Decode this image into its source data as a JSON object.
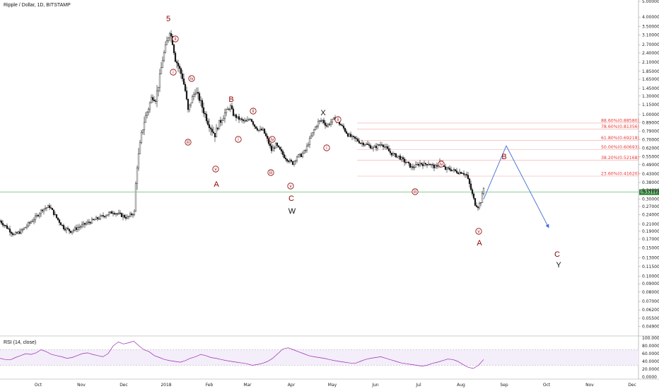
{
  "title": "Ripple / Dollar, 1D, BITSTAMP",
  "rsi_title": "RSI (14, close)",
  "current_price": "0.33117",
  "colors": {
    "candle": "#111111",
    "fib_line": "#f4a6a6",
    "fib_text": "#e53935",
    "price_line": "#4caf50",
    "price_tag": "#2e7d32",
    "wave_red": "#8b0000",
    "projection": "#3f6fd1",
    "rsi_line": "#9c27b0"
  },
  "chart_data": {
    "type": "candlestick",
    "y_scale": "log",
    "ylim": [
      0.045,
      5.0
    ],
    "y_ticks": [
      "5.00000",
      "4.00000",
      "3.50000",
      "3.10000",
      "2.70000",
      "2.40000",
      "2.10000",
      "1.85000",
      "1.65000",
      "1.45000",
      "1.30000",
      "1.15000",
      "1.00000",
      "0.89000",
      "0.79000",
      "0.70000",
      "0.62000",
      "0.55000",
      "0.49000",
      "0.43000",
      "0.38000",
      "0.34000",
      "0.30000",
      "0.27000",
      "0.24000",
      "0.21000",
      "0.19000",
      "0.17000",
      "0.15000",
      "0.13000",
      "0.11500",
      "0.10000",
      "0.09000",
      "0.08000",
      "0.07000",
      "0.06200",
      "0.05500",
      "0.04900"
    ],
    "x_labels": [
      "Oct",
      "Nov",
      "Dec",
      "2018",
      "Feb",
      "Mar",
      "Apr",
      "May",
      "Jun",
      "Jul",
      "Aug",
      "Sep",
      "Oct",
      "Nov",
      "Dec"
    ],
    "price_path": [
      [
        0,
        0.22
      ],
      [
        10,
        0.2
      ],
      [
        20,
        0.18
      ],
      [
        30,
        0.19
      ],
      [
        40,
        0.21
      ],
      [
        50,
        0.23
      ],
      [
        60,
        0.26
      ],
      [
        70,
        0.27
      ],
      [
        80,
        0.23
      ],
      [
        90,
        0.2
      ],
      [
        100,
        0.19
      ],
      [
        110,
        0.2
      ],
      [
        120,
        0.21
      ],
      [
        130,
        0.22
      ],
      [
        140,
        0.23
      ],
      [
        150,
        0.24
      ],
      [
        160,
        0.25
      ],
      [
        170,
        0.24
      ],
      [
        180,
        0.23
      ],
      [
        190,
        0.25
      ],
      [
        193,
        0.45
      ],
      [
        200,
        0.75
      ],
      [
        205,
        0.95
      ],
      [
        210,
        1.1
      ],
      [
        215,
        1.3
      ],
      [
        220,
        1.25
      ],
      [
        225,
        1.6
      ],
      [
        230,
        2.2
      ],
      [
        235,
        2.7
      ],
      [
        240,
        3.3
      ],
      [
        244,
        2.8
      ],
      [
        248,
        2.2
      ],
      [
        252,
        2.0
      ],
      [
        258,
        1.7
      ],
      [
        262,
        1.4
      ],
      [
        266,
        1.05
      ],
      [
        270,
        1.2
      ],
      [
        276,
        1.4
      ],
      [
        282,
        1.25
      ],
      [
        288,
        1.05
      ],
      [
        294,
        0.9
      ],
      [
        300,
        0.8
      ],
      [
        304,
        0.75
      ],
      [
        308,
        0.85
      ],
      [
        314,
        0.95
      ],
      [
        320,
        1.05
      ],
      [
        326,
        1.12
      ],
      [
        330,
        1.0
      ],
      [
        336,
        0.95
      ],
      [
        342,
        0.92
      ],
      [
        348,
        0.9
      ],
      [
        354,
        0.95
      ],
      [
        360,
        0.85
      ],
      [
        366,
        0.8
      ],
      [
        372,
        0.8
      ],
      [
        378,
        0.7
      ],
      [
        384,
        0.6
      ],
      [
        390,
        0.65
      ],
      [
        396,
        0.6
      ],
      [
        402,
        0.55
      ],
      [
        408,
        0.52
      ],
      [
        414,
        0.5
      ],
      [
        420,
        0.55
      ],
      [
        426,
        0.56
      ],
      [
        432,
        0.6
      ],
      [
        438,
        0.7
      ],
      [
        444,
        0.8
      ],
      [
        450,
        0.9
      ],
      [
        456,
        0.92
      ],
      [
        462,
        0.85
      ],
      [
        468,
        0.9
      ],
      [
        474,
        0.95
      ],
      [
        480,
        0.88
      ],
      [
        486,
        0.82
      ],
      [
        492,
        0.75
      ],
      [
        498,
        0.72
      ],
      [
        504,
        0.7
      ],
      [
        510,
        0.67
      ],
      [
        516,
        0.66
      ],
      [
        522,
        0.64
      ],
      [
        528,
        0.62
      ],
      [
        534,
        0.64
      ],
      [
        540,
        0.66
      ],
      [
        546,
        0.62
      ],
      [
        552,
        0.58
      ],
      [
        558,
        0.56
      ],
      [
        564,
        0.55
      ],
      [
        570,
        0.52
      ],
      [
        576,
        0.5
      ],
      [
        582,
        0.47
      ],
      [
        588,
        0.48
      ],
      [
        594,
        0.5
      ],
      [
        600,
        0.49
      ],
      [
        606,
        0.5
      ],
      [
        612,
        0.48
      ],
      [
        618,
        0.47
      ],
      [
        622,
        0.52
      ],
      [
        626,
        0.48
      ],
      [
        630,
        0.46
      ],
      [
        636,
        0.46
      ],
      [
        642,
        0.45
      ],
      [
        648,
        0.44
      ],
      [
        654,
        0.44
      ],
      [
        660,
        0.42
      ],
      [
        664,
        0.37
      ],
      [
        668,
        0.32
      ],
      [
        672,
        0.28
      ],
      [
        676,
        0.27
      ],
      [
        680,
        0.29
      ],
      [
        684,
        0.35
      ]
    ],
    "fib_levels": [
      {
        "label": "88.60%(0.88580)",
        "value": 0.8858
      },
      {
        "label": "78.60%(0.81356)",
        "value": 0.81356
      },
      {
        "label": "61.80%(0.69218)",
        "value": 0.69218
      },
      {
        "label": "50.00%(0.60693)",
        "value": 0.60693
      },
      {
        "label": "38.20%(0.52168)",
        "value": 0.52168
      },
      {
        "label": "23.60%(0.41620)",
        "value": 0.4162
      }
    ],
    "wave_labels": [
      {
        "text": "5",
        "style": "red"
      },
      {
        "text": "A",
        "style": "red"
      },
      {
        "text": "B",
        "style": "red"
      },
      {
        "text": "C",
        "style": "red"
      },
      {
        "text": "W",
        "style": "black"
      },
      {
        "text": "X",
        "style": "black"
      },
      {
        "text": "A",
        "style": "red"
      },
      {
        "text": "B",
        "style": "red"
      },
      {
        "text": "C",
        "style": "red"
      },
      {
        "text": "Y",
        "style": "black"
      }
    ],
    "sub_waves": [
      "ii",
      "i",
      "iv",
      "iii",
      "v",
      "ii",
      "i",
      "iv",
      "iii",
      "v",
      "ii",
      "i",
      "iv",
      "iii",
      "v"
    ],
    "projection": [
      {
        "x_day": 684,
        "y": 0.3
      },
      {
        "x_day": 716,
        "y": 0.64
      },
      {
        "x_day": 776,
        "y": 0.2
      }
    ],
    "rsi": {
      "y_ticks": [
        "100.0000",
        "80.0000",
        "60.0000",
        "40.0000",
        "20.0000",
        "0.0000"
      ],
      "upper": 70,
      "lower": 30,
      "values": [
        48,
        45,
        44,
        50,
        55,
        60,
        58,
        62,
        70,
        65,
        58,
        55,
        52,
        48,
        50,
        55,
        60,
        62,
        58,
        55,
        52,
        60,
        80,
        90,
        85,
        88,
        92,
        80,
        70,
        65,
        55,
        50,
        45,
        42,
        40,
        38,
        42,
        48,
        52,
        58,
        55,
        50,
        48,
        45,
        42,
        40,
        38,
        36,
        34,
        30,
        32,
        35,
        40,
        48,
        60,
        72,
        75,
        70,
        65,
        60,
        55,
        52,
        50,
        48,
        45,
        42,
        40,
        38,
        36,
        35,
        40,
        45,
        48,
        50,
        52,
        48,
        44,
        40,
        36,
        34,
        32,
        30,
        28,
        30,
        35,
        38,
        42,
        46,
        45,
        40,
        32,
        25,
        22,
        30,
        45
      ]
    }
  }
}
